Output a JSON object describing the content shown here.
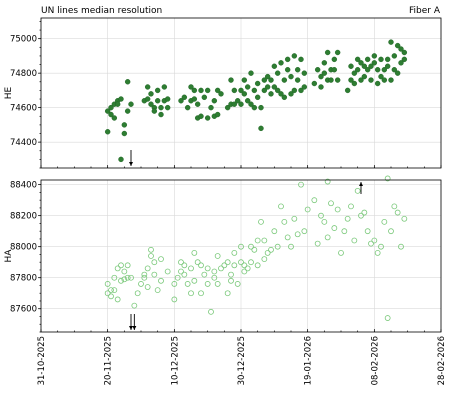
{
  "header": {
    "title": "UN lines median resolution",
    "fiber": "Fiber A"
  },
  "chart_data": [
    {
      "type": "scatter",
      "panel": "top",
      "ylabel": "HE",
      "ylim": [
        74250,
        75120
      ],
      "yticks": [
        74400,
        74600,
        74800,
        75000
      ],
      "grid": true,
      "marker": "filled-circle",
      "color": "#2e7d32",
      "arrows": [
        {
          "date": "2025-11-27",
          "direction": "down"
        }
      ],
      "points": [
        [
          "2025-11-20",
          74460
        ],
        [
          "2025-11-20",
          74580
        ],
        [
          "2025-11-21",
          74560
        ],
        [
          "2025-11-21",
          74600
        ],
        [
          "2025-11-22",
          74540
        ],
        [
          "2025-11-22",
          74620
        ],
        [
          "2025-11-23",
          74640
        ],
        [
          "2025-11-23",
          74620
        ],
        [
          "2025-11-24",
          74300
        ],
        [
          "2025-11-24",
          74650
        ],
        [
          "2025-11-25",
          74450
        ],
        [
          "2025-11-25",
          74500
        ],
        [
          "2025-11-26",
          74580
        ],
        [
          "2025-11-26",
          74750
        ],
        [
          "2025-11-27",
          74620
        ],
        [
          "2025-12-01",
          74640
        ],
        [
          "2025-12-02",
          74650
        ],
        [
          "2025-12-02",
          74720
        ],
        [
          "2025-12-03",
          74620
        ],
        [
          "2025-12-03",
          74680
        ],
        [
          "2025-12-04",
          74600
        ],
        [
          "2025-12-04",
          74580
        ],
        [
          "2025-12-05",
          74640
        ],
        [
          "2025-12-05",
          74700
        ],
        [
          "2025-12-06",
          74600
        ],
        [
          "2025-12-06",
          74560
        ],
        [
          "2025-12-07",
          74640
        ],
        [
          "2025-12-07",
          74720
        ],
        [
          "2025-12-08",
          74650
        ],
        [
          "2025-12-08",
          74600
        ],
        [
          "2025-12-12",
          74640
        ],
        [
          "2025-12-13",
          74660
        ],
        [
          "2025-12-14",
          74600
        ],
        [
          "2025-12-15",
          74640
        ],
        [
          "2025-12-15",
          74720
        ],
        [
          "2025-12-16",
          74650
        ],
        [
          "2025-12-16",
          74700
        ],
        [
          "2025-12-17",
          74620
        ],
        [
          "2025-12-17",
          74540
        ],
        [
          "2025-12-18",
          74700
        ],
        [
          "2025-12-18",
          74550
        ],
        [
          "2025-12-19",
          74660
        ],
        [
          "2025-12-20",
          74540
        ],
        [
          "2025-12-20",
          74700
        ],
        [
          "2025-12-21",
          74600
        ],
        [
          "2025-12-22",
          74550
        ],
        [
          "2025-12-22",
          74640
        ],
        [
          "2025-12-23",
          74700
        ],
        [
          "2025-12-23",
          74560
        ],
        [
          "2025-12-24",
          74680
        ],
        [
          "2025-12-26",
          74600
        ],
        [
          "2025-12-27",
          74620
        ],
        [
          "2025-12-27",
          74760
        ],
        [
          "2025-12-28",
          74700
        ],
        [
          "2025-12-28",
          74620
        ],
        [
          "2025-12-29",
          74640
        ],
        [
          "2025-12-30",
          74700
        ],
        [
          "2025-12-30",
          74620
        ],
        [
          "2025-12-31",
          74760
        ],
        [
          "2025-12-31",
          74680
        ],
        [
          "2026-01-01",
          74640
        ],
        [
          "2026-01-01",
          74720
        ],
        [
          "2026-01-02",
          74620
        ],
        [
          "2026-01-02",
          74800
        ],
        [
          "2026-01-03",
          74700
        ],
        [
          "2026-01-03",
          74600
        ],
        [
          "2026-01-04",
          74740
        ],
        [
          "2026-01-04",
          74660
        ],
        [
          "2026-01-05",
          74600
        ],
        [
          "2026-01-05",
          74480
        ],
        [
          "2026-01-06",
          74760
        ],
        [
          "2026-01-06",
          74700
        ],
        [
          "2026-01-07",
          74720
        ],
        [
          "2026-01-07",
          74780
        ],
        [
          "2026-01-08",
          74680
        ],
        [
          "2026-01-08",
          74760
        ],
        [
          "2026-01-09",
          74840
        ],
        [
          "2026-01-09",
          74720
        ],
        [
          "2026-01-10",
          74800
        ],
        [
          "2026-01-10",
          74700
        ],
        [
          "2026-01-11",
          74860
        ],
        [
          "2026-01-11",
          74680
        ],
        [
          "2026-01-12",
          74760
        ],
        [
          "2026-01-12",
          74660
        ],
        [
          "2026-01-13",
          74820
        ],
        [
          "2026-01-13",
          74880
        ],
        [
          "2026-01-14",
          74680
        ],
        [
          "2026-01-14",
          74780
        ],
        [
          "2026-01-15",
          74900
        ],
        [
          "2026-01-15",
          74700
        ],
        [
          "2026-01-16",
          74820
        ],
        [
          "2026-01-16",
          74760
        ],
        [
          "2026-01-17",
          74880
        ],
        [
          "2026-01-17",
          74700
        ],
        [
          "2026-01-18",
          74800
        ],
        [
          "2026-01-18",
          74720
        ],
        [
          "2026-01-21",
          74740
        ],
        [
          "2026-01-22",
          74820
        ],
        [
          "2026-01-23",
          74780
        ],
        [
          "2026-01-23",
          74720
        ],
        [
          "2026-01-24",
          74860
        ],
        [
          "2026-01-24",
          74800
        ],
        [
          "2026-01-25",
          74760
        ],
        [
          "2026-01-25",
          74920
        ],
        [
          "2026-01-26",
          74820
        ],
        [
          "2026-01-26",
          74760
        ],
        [
          "2026-01-27",
          74880
        ],
        [
          "2026-01-27",
          74820
        ],
        [
          "2026-01-28",
          74920
        ],
        [
          "2026-01-28",
          74760
        ],
        [
          "2026-01-31",
          74700
        ],
        [
          "2026-02-01",
          74760
        ],
        [
          "2026-02-01",
          74840
        ],
        [
          "2026-02-02",
          74800
        ],
        [
          "2026-02-02",
          74740
        ],
        [
          "2026-02-03",
          74880
        ],
        [
          "2026-02-03",
          74820
        ],
        [
          "2026-02-04",
          74760
        ],
        [
          "2026-02-04",
          74860
        ],
        [
          "2026-02-05",
          74840
        ],
        [
          "2026-02-05",
          74780
        ],
        [
          "2026-02-06",
          74880
        ],
        [
          "2026-02-06",
          74820
        ],
        [
          "2026-02-07",
          74840
        ],
        [
          "2026-02-07",
          74760
        ],
        [
          "2026-02-08",
          74900
        ],
        [
          "2026-02-08",
          74860
        ],
        [
          "2026-02-09",
          74740
        ],
        [
          "2026-02-09",
          74820
        ],
        [
          "2026-02-10",
          74880
        ],
        [
          "2026-02-10",
          74780
        ],
        [
          "2026-02-11",
          74820
        ],
        [
          "2026-02-11",
          74760
        ],
        [
          "2026-02-12",
          74880
        ],
        [
          "2026-02-12",
          74840
        ],
        [
          "2026-02-13",
          74980
        ],
        [
          "2026-02-13",
          74760
        ],
        [
          "2026-02-14",
          74900
        ],
        [
          "2026-02-14",
          74820
        ],
        [
          "2026-02-15",
          74960
        ],
        [
          "2026-02-15",
          74800
        ],
        [
          "2026-02-16",
          74940
        ],
        [
          "2026-02-16",
          74860
        ],
        [
          "2026-02-17",
          74920
        ],
        [
          "2026-02-17",
          74880
        ]
      ]
    },
    {
      "type": "scatter",
      "panel": "bottom",
      "ylabel": "HA",
      "ylim": [
        87450,
        88430
      ],
      "yticks": [
        87600,
        87800,
        88000,
        88200,
        88400
      ],
      "grid": true,
      "marker": "open-circle",
      "color": "#7bc97b",
      "arrows": [
        {
          "date": "2025-11-27",
          "direction": "down"
        },
        {
          "date": "2025-11-28",
          "direction": "down"
        },
        {
          "date": "2026-02-04",
          "direction": "up"
        }
      ],
      "xticks": [
        "31-10-2025",
        "20-11-2025",
        "10-12-2025",
        "30-12-2025",
        "19-01-2026",
        "08-02-2026",
        "28-02-2026"
      ],
      "xlim": [
        "2025-10-31",
        "2026-02-28"
      ],
      "points": [
        [
          "2025-11-20",
          87700
        ],
        [
          "2025-11-20",
          87760
        ],
        [
          "2025-11-21",
          87720
        ],
        [
          "2025-11-21",
          87680
        ],
        [
          "2025-11-22",
          87800
        ],
        [
          "2025-11-22",
          87720
        ],
        [
          "2025-11-23",
          87660
        ],
        [
          "2025-11-23",
          87860
        ],
        [
          "2025-11-24",
          87780
        ],
        [
          "2025-11-24",
          87880
        ],
        [
          "2025-11-25",
          87840
        ],
        [
          "2025-11-25",
          87790
        ],
        [
          "2025-11-26",
          87880
        ],
        [
          "2025-11-26",
          87800
        ],
        [
          "2025-11-27",
          87800
        ],
        [
          "2025-11-28",
          87620
        ],
        [
          "2025-11-29",
          87700
        ],
        [
          "2025-11-30",
          87760
        ],
        [
          "2025-12-01",
          87820
        ],
        [
          "2025-12-01",
          87800
        ],
        [
          "2025-12-02",
          87740
        ],
        [
          "2025-12-02",
          87860
        ],
        [
          "2025-12-03",
          87940
        ],
        [
          "2025-12-03",
          87980
        ],
        [
          "2025-12-04",
          87900
        ],
        [
          "2025-12-04",
          87820
        ],
        [
          "2025-12-05",
          87720
        ],
        [
          "2025-12-06",
          87920
        ],
        [
          "2025-12-06",
          87780
        ],
        [
          "2025-12-08",
          87840
        ],
        [
          "2025-12-10",
          87660
        ],
        [
          "2025-12-10",
          87760
        ],
        [
          "2025-12-11",
          87800
        ],
        [
          "2025-12-12",
          87840
        ],
        [
          "2025-12-12",
          87900
        ],
        [
          "2025-12-13",
          87820
        ],
        [
          "2025-12-13",
          87880
        ],
        [
          "2025-12-14",
          87760
        ],
        [
          "2025-12-15",
          87700
        ],
        [
          "2025-12-15",
          87860
        ],
        [
          "2025-12-16",
          87960
        ],
        [
          "2025-12-16",
          87780
        ],
        [
          "2025-12-17",
          87900
        ],
        [
          "2025-12-18",
          87880
        ],
        [
          "2025-12-18",
          87700
        ],
        [
          "2025-12-19",
          87820
        ],
        [
          "2025-12-20",
          87760
        ],
        [
          "2025-12-20",
          87860
        ],
        [
          "2025-12-21",
          87580
        ],
        [
          "2025-12-22",
          87840
        ],
        [
          "2025-12-22",
          87800
        ],
        [
          "2025-12-23",
          87940
        ],
        [
          "2025-12-23",
          87760
        ],
        [
          "2025-12-24",
          87860
        ],
        [
          "2025-12-25",
          87880
        ],
        [
          "2025-12-26",
          87900
        ],
        [
          "2025-12-26",
          87700
        ],
        [
          "2025-12-27",
          87820
        ],
        [
          "2025-12-27",
          87780
        ],
        [
          "2025-12-28",
          87880
        ],
        [
          "2025-12-28",
          87960
        ],
        [
          "2025-12-29",
          87760
        ],
        [
          "2025-12-30",
          87900
        ],
        [
          "2025-12-30",
          88000
        ],
        [
          "2025-12-31",
          87840
        ],
        [
          "2025-12-31",
          87880
        ],
        [
          "2026-01-01",
          87860
        ],
        [
          "2026-01-02",
          87900
        ],
        [
          "2026-01-02",
          88000
        ],
        [
          "2026-01-03",
          87980
        ],
        [
          "2026-01-04",
          87880
        ],
        [
          "2026-01-04",
          88040
        ],
        [
          "2026-01-05",
          88160
        ],
        [
          "2026-01-06",
          87920
        ],
        [
          "2026-01-06",
          88040
        ],
        [
          "2026-01-07",
          87960
        ],
        [
          "2026-01-08",
          87980
        ],
        [
          "2026-01-09",
          88100
        ],
        [
          "2026-01-10",
          88000
        ],
        [
          "2026-01-11",
          88260
        ],
        [
          "2026-01-12",
          88160
        ],
        [
          "2026-01-13",
          88060
        ],
        [
          "2026-01-14",
          88000
        ],
        [
          "2026-01-15",
          88180
        ],
        [
          "2026-01-16",
          88080
        ],
        [
          "2026-01-17",
          88400
        ],
        [
          "2026-01-18",
          88100
        ],
        [
          "2026-01-19",
          88240
        ],
        [
          "2026-01-21",
          88300
        ],
        [
          "2026-01-22",
          88020
        ],
        [
          "2026-01-23",
          88200
        ],
        [
          "2026-01-24",
          88160
        ],
        [
          "2026-01-25",
          88420
        ],
        [
          "2026-01-25",
          88060
        ],
        [
          "2026-01-26",
          88280
        ],
        [
          "2026-01-27",
          88120
        ],
        [
          "2026-01-28",
          88240
        ],
        [
          "2026-01-29",
          87960
        ],
        [
          "2026-01-30",
          88100
        ],
        [
          "2026-01-31",
          88180
        ],
        [
          "2026-02-01",
          88260
        ],
        [
          "2026-02-02",
          88040
        ],
        [
          "2026-02-03",
          88360
        ],
        [
          "2026-02-04",
          88200
        ],
        [
          "2026-02-05",
          88220
        ],
        [
          "2026-02-06",
          88100
        ],
        [
          "2026-02-07",
          88020
        ],
        [
          "2026-02-08",
          88040
        ],
        [
          "2026-02-09",
          87960
        ],
        [
          "2026-02-10",
          88000
        ],
        [
          "2026-02-11",
          88160
        ],
        [
          "2026-02-12",
          87540
        ],
        [
          "2026-02-12",
          88440
        ],
        [
          "2026-02-13",
          88100
        ],
        [
          "2026-02-14",
          88260
        ],
        [
          "2026-02-15",
          88220
        ],
        [
          "2026-02-16",
          88000
        ],
        [
          "2026-02-17",
          88180
        ]
      ]
    }
  ]
}
